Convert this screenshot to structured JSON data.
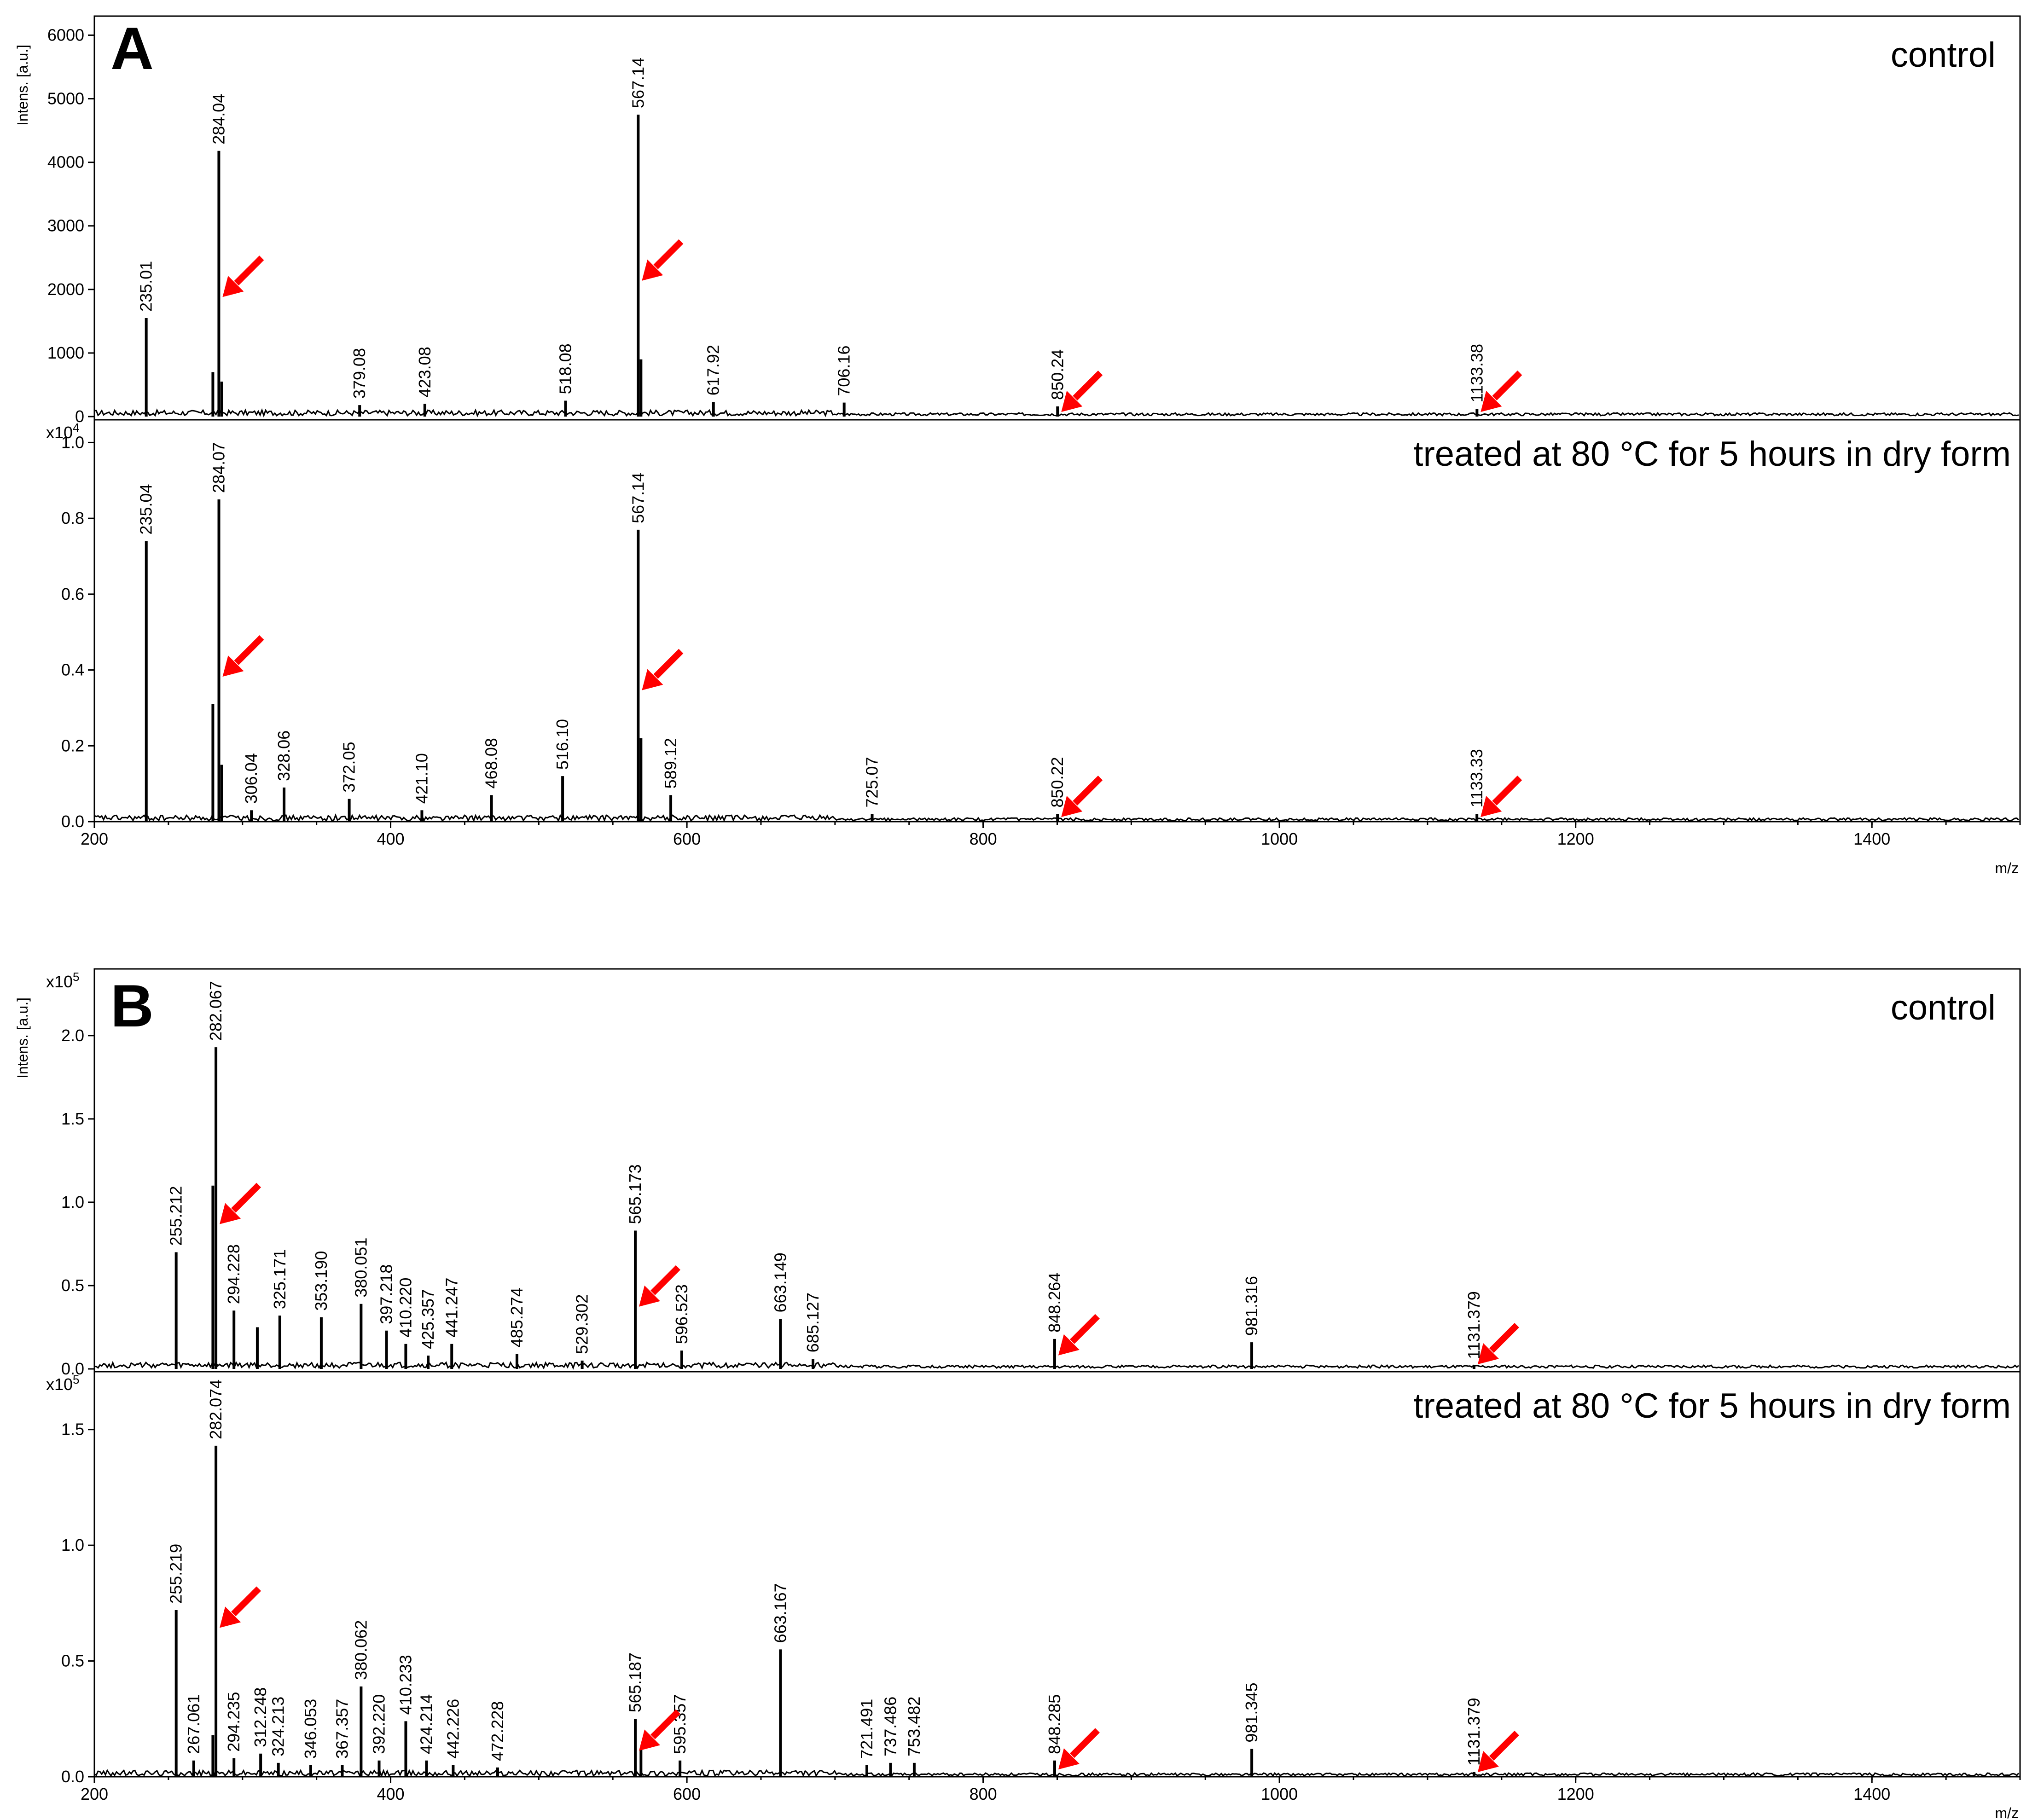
{
  "colors": {
    "background": "#ffffff",
    "trace": "#000000",
    "arrow": "#ff0000"
  },
  "chart_data": [
    {
      "panel": "A",
      "type": "line",
      "xlabel": "m/z",
      "x_ticks": [
        "200",
        "400",
        "600",
        "800",
        "1000",
        "1200",
        "1400"
      ],
      "xlim": [
        200,
        1500
      ],
      "subplots": [
        {
          "title": "control",
          "ylabel": "Intens. [a.u.]",
          "multiplier": "",
          "ylim": [
            0,
            6300
          ],
          "y_ticks": [
            {
              "value": 0,
              "label": "0"
            },
            {
              "value": 1000,
              "label": "1000"
            },
            {
              "value": 2000,
              "label": "2000"
            },
            {
              "value": 3000,
              "label": "3000"
            },
            {
              "value": 4000,
              "label": "4000"
            },
            {
              "value": 5000,
              "label": "5000"
            },
            {
              "value": 6000,
              "label": "6000"
            }
          ],
          "peaks": [
            {
              "x": 235.01,
              "y": 1550,
              "label": "235.01"
            },
            {
              "x": 280.0,
              "y": 700,
              "label": ""
            },
            {
              "x": 284.04,
              "y": 4180,
              "label": "284.04"
            },
            {
              "x": 286.0,
              "y": 550,
              "label": ""
            },
            {
              "x": 379.08,
              "y": 180,
              "label": "379.08"
            },
            {
              "x": 423.08,
              "y": 200,
              "label": "423.08"
            },
            {
              "x": 518.08,
              "y": 250,
              "label": "518.08"
            },
            {
              "x": 567.14,
              "y": 4750,
              "label": "567.14"
            },
            {
              "x": 569.0,
              "y": 900,
              "label": ""
            },
            {
              "x": 617.92,
              "y": 230,
              "label": "617.92"
            },
            {
              "x": 706.16,
              "y": 220,
              "label": "706.16"
            },
            {
              "x": 850.24,
              "y": 160,
              "label": "850.24"
            },
            {
              "x": 1133.38,
              "y": 120,
              "label": "1133.38"
            }
          ],
          "arrows": [
            284.04,
            567.14,
            850.24,
            1133.38
          ]
        },
        {
          "title": "treated at 80 °C for 5 hours in dry form",
          "ylabel": "",
          "multiplier": "x10",
          "multiplier_exp": "4",
          "ylim": [
            0,
            1.06
          ],
          "y_ticks": [
            {
              "value": 0.0,
              "label": "0.0"
            },
            {
              "value": 0.2,
              "label": "0.2"
            },
            {
              "value": 0.4,
              "label": "0.4"
            },
            {
              "value": 0.6,
              "label": "0.6"
            },
            {
              "value": 0.8,
              "label": "0.8"
            },
            {
              "value": 1.0,
              "label": "1.0"
            }
          ],
          "peaks": [
            {
              "x": 235.04,
              "y": 0.74,
              "label": "235.04"
            },
            {
              "x": 280.0,
              "y": 0.31,
              "label": ""
            },
            {
              "x": 284.07,
              "y": 0.85,
              "label": "284.07"
            },
            {
              "x": 286.0,
              "y": 0.15,
              "label": ""
            },
            {
              "x": 306.04,
              "y": 0.03,
              "label": "306.04"
            },
            {
              "x": 328.06,
              "y": 0.09,
              "label": "328.06"
            },
            {
              "x": 372.05,
              "y": 0.06,
              "label": "372.05"
            },
            {
              "x": 421.1,
              "y": 0.03,
              "label": "421.10"
            },
            {
              "x": 468.08,
              "y": 0.07,
              "label": "468.08"
            },
            {
              "x": 516.1,
              "y": 0.12,
              "label": "516.10"
            },
            {
              "x": 567.14,
              "y": 0.77,
              "label": "567.14"
            },
            {
              "x": 569.0,
              "y": 0.22,
              "label": ""
            },
            {
              "x": 589.12,
              "y": 0.07,
              "label": "589.12"
            },
            {
              "x": 725.07,
              "y": 0.02,
              "label": "725.07"
            },
            {
              "x": 850.22,
              "y": 0.02,
              "label": "850.22"
            },
            {
              "x": 1133.33,
              "y": 0.02,
              "label": "1133.33"
            }
          ],
          "arrows": [
            284.07,
            567.14,
            850.22,
            1133.33
          ]
        }
      ]
    },
    {
      "panel": "B",
      "type": "line",
      "xlabel": "m/z",
      "x_ticks": [
        "200",
        "400",
        "600",
        "800",
        "1000",
        "1200",
        "1400"
      ],
      "xlim": [
        200,
        1500
      ],
      "subplots": [
        {
          "title": "control",
          "ylabel": "Intens. [a.u.]",
          "multiplier": "x10",
          "multiplier_exp": "5",
          "ylim": [
            0,
            2.4
          ],
          "y_ticks": [
            {
              "value": 0.0,
              "label": "0.0"
            },
            {
              "value": 0.5,
              "label": "0.5"
            },
            {
              "value": 1.0,
              "label": "1.0"
            },
            {
              "value": 1.5,
              "label": "1.5"
            },
            {
              "value": 2.0,
              "label": "2.0"
            }
          ],
          "peaks": [
            {
              "x": 255.212,
              "y": 0.7,
              "label": "255.212"
            },
            {
              "x": 280.0,
              "y": 1.1,
              "label": ""
            },
            {
              "x": 282.067,
              "y": 1.93,
              "label": "282.067"
            },
            {
              "x": 294.228,
              "y": 0.35,
              "label": "294.228"
            },
            {
              "x": 310.0,
              "y": 0.25,
              "label": ""
            },
            {
              "x": 325.171,
              "y": 0.32,
              "label": "325.171"
            },
            {
              "x": 353.19,
              "y": 0.31,
              "label": "353.190"
            },
            {
              "x": 380.051,
              "y": 0.39,
              "label": "380.051"
            },
            {
              "x": 397.218,
              "y": 0.23,
              "label": "397.218"
            },
            {
              "x": 410.22,
              "y": 0.15,
              "label": "410.220"
            },
            {
              "x": 425.357,
              "y": 0.08,
              "label": "425.357"
            },
            {
              "x": 441.247,
              "y": 0.15,
              "label": "441.247"
            },
            {
              "x": 485.274,
              "y": 0.09,
              "label": "485.274"
            },
            {
              "x": 529.302,
              "y": 0.05,
              "label": "529.302"
            },
            {
              "x": 565.173,
              "y": 0.83,
              "label": "565.173"
            },
            {
              "x": 596.523,
              "y": 0.11,
              "label": "596.523"
            },
            {
              "x": 663.149,
              "y": 0.3,
              "label": "663.149"
            },
            {
              "x": 685.127,
              "y": 0.06,
              "label": "685.127"
            },
            {
              "x": 848.264,
              "y": 0.18,
              "label": "848.264"
            },
            {
              "x": 981.316,
              "y": 0.16,
              "label": "981.316"
            },
            {
              "x": 1131.379,
              "y": 0.02,
              "label": "1131.379"
            }
          ],
          "arrows": [
            282.067,
            565.173,
            848.264,
            1131.379
          ]
        },
        {
          "title": "treated at 80 °C for 5 hours in dry form",
          "ylabel": "",
          "multiplier": "x10",
          "multiplier_exp": "5",
          "ylim": [
            0,
            1.75
          ],
          "y_ticks": [
            {
              "value": 0.0,
              "label": "0.0"
            },
            {
              "value": 0.5,
              "label": "0.5"
            },
            {
              "value": 1.0,
              "label": "1.0"
            },
            {
              "value": 1.5,
              "label": "1.5"
            }
          ],
          "peaks": [
            {
              "x": 255.219,
              "y": 0.72,
              "label": "255.219"
            },
            {
              "x": 267.061,
              "y": 0.07,
              "label": "267.061"
            },
            {
              "x": 280.0,
              "y": 0.18,
              "label": ""
            },
            {
              "x": 282.074,
              "y": 1.43,
              "label": "282.074"
            },
            {
              "x": 294.235,
              "y": 0.08,
              "label": "294.235"
            },
            {
              "x": 312.248,
              "y": 0.1,
              "label": "312.248"
            },
            {
              "x": 324.213,
              "y": 0.06,
              "label": "324.213"
            },
            {
              "x": 346.053,
              "y": 0.05,
              "label": "346.053"
            },
            {
              "x": 367.357,
              "y": 0.05,
              "label": "367.357"
            },
            {
              "x": 380.062,
              "y": 0.39,
              "label": "380.062"
            },
            {
              "x": 392.22,
              "y": 0.07,
              "label": "392.220"
            },
            {
              "x": 410.233,
              "y": 0.24,
              "label": "410.233"
            },
            {
              "x": 424.214,
              "y": 0.07,
              "label": "424.214"
            },
            {
              "x": 442.226,
              "y": 0.05,
              "label": "442.226"
            },
            {
              "x": 472.228,
              "y": 0.04,
              "label": "472.228"
            },
            {
              "x": 565.187,
              "y": 0.25,
              "label": "565.187"
            },
            {
              "x": 569.0,
              "y": 0.12,
              "label": ""
            },
            {
              "x": 595.357,
              "y": 0.07,
              "label": "595.357"
            },
            {
              "x": 663.167,
              "y": 0.55,
              "label": "663.167"
            },
            {
              "x": 721.491,
              "y": 0.05,
              "label": "721.491"
            },
            {
              "x": 737.486,
              "y": 0.06,
              "label": "737.486"
            },
            {
              "x": 753.482,
              "y": 0.06,
              "label": "753.482"
            },
            {
              "x": 848.285,
              "y": 0.07,
              "label": "848.285"
            },
            {
              "x": 981.345,
              "y": 0.12,
              "label": "981.345"
            },
            {
              "x": 1131.379,
              "y": 0.02,
              "label": "1131.379"
            }
          ],
          "arrows": [
            282.074,
            565.187,
            848.285,
            1131.379
          ]
        }
      ]
    }
  ]
}
